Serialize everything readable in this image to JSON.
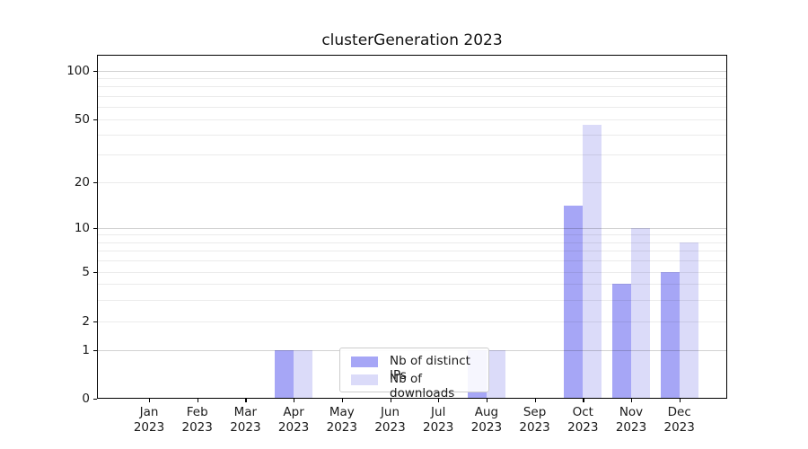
{
  "title": "clusterGeneration 2023",
  "chart_data": {
    "type": "bar",
    "title": "clusterGeneration 2023",
    "categories": [
      "Jan",
      "Feb",
      "Mar",
      "Apr",
      "May",
      "Jun",
      "Jul",
      "Aug",
      "Sep",
      "Oct",
      "Nov",
      "Dec"
    ],
    "category_year": "2023",
    "series": [
      {
        "name": "Nb of distinct IPs",
        "color": "#a6a6f6",
        "values": [
          0,
          0,
          0,
          1,
          0,
          0,
          0,
          1,
          0,
          14,
          4,
          5
        ]
      },
      {
        "name": "Nb of downloads",
        "color": "#dbdbf9",
        "values": [
          0,
          0,
          0,
          1,
          0,
          0,
          0,
          1,
          0,
          46,
          10,
          8
        ]
      }
    ],
    "yscale": "symlog",
    "ylim": [
      0,
      130
    ],
    "yticks": [
      0,
      1,
      2,
      5,
      10,
      20,
      50,
      100
    ],
    "minor_yticks": [
      3,
      4,
      6,
      7,
      8,
      9,
      30,
      40,
      60,
      70,
      80,
      90
    ],
    "grid": "horizontal",
    "legend_position": "lower center"
  },
  "legend": {
    "items": [
      {
        "label": "Nb of distinct IPs",
        "color": "#a6a6f6"
      },
      {
        "label": "Nb of downloads",
        "color": "#dbdbf9"
      }
    ]
  },
  "colors": {
    "series_ips": "#a6a6f6",
    "series_downloads": "#dbdbf9",
    "grid_major": "#d1d1d1",
    "grid_minor": "#ebebeb",
    "axis": "#000000",
    "legend_border": "#cccccc"
  }
}
